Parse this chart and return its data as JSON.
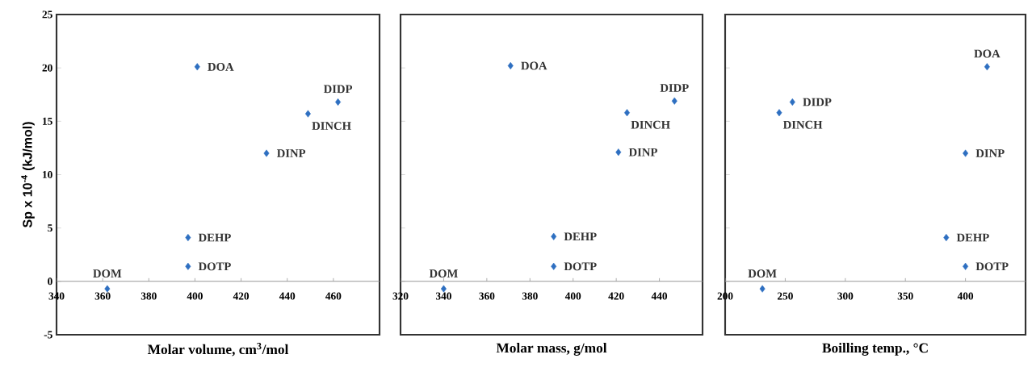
{
  "chart_data": [
    {
      "type": "scatter",
      "x": [
        362,
        397,
        397,
        401,
        431,
        449,
        462
      ],
      "values": [
        -0.7,
        1.4,
        4.1,
        20.1,
        12.0,
        15.7,
        16.8
      ],
      "color": "#2e6fc1",
      "marker": "diamond",
      "xlabel": "Molar volume, cm$^{3}$/mol",
      "ylabel": "Sp  x 10$^{-4}$ (kJ/mol)",
      "xlim": [
        340,
        480
      ],
      "ylim": [
        -5,
        25
      ],
      "xticks": [
        340,
        360,
        380,
        400,
        420,
        440,
        460
      ],
      "yticks": [
        -5,
        0,
        5,
        10,
        15,
        20,
        25
      ],
      "annotations": [
        {
          "text": "DOM",
          "x": 362,
          "y": -0.7
        },
        {
          "text": "DOTP",
          "x": 397,
          "y": 1.4
        },
        {
          "text": "DEHP",
          "x": 397,
          "y": 4.1
        },
        {
          "text": "DOA",
          "x": 401,
          "y": 20.1
        },
        {
          "text": "DINP",
          "x": 431,
          "y": 12.0
        },
        {
          "text": "DINCH",
          "x": 449,
          "y": 15.7
        },
        {
          "text": "DIDP",
          "x": 462,
          "y": 16.8
        }
      ]
    },
    {
      "type": "scatter",
      "x": [
        340,
        391,
        391,
        371,
        421,
        425,
        447
      ],
      "values": [
        -0.7,
        1.4,
        4.2,
        20.2,
        12.1,
        15.8,
        16.9
      ],
      "color": "#2e6fc1",
      "marker": "diamond",
      "xlabel": "Molar mass, g/mol",
      "xlim": [
        320,
        460
      ],
      "ylim": [
        -5,
        25
      ],
      "xticks": [
        320,
        340,
        360,
        380,
        400,
        420,
        440
      ],
      "yticks": [
        -5,
        0,
        5,
        10,
        15,
        20,
        25
      ],
      "tick_labels": "x",
      "annotations": [
        {
          "text": "DOM",
          "x": 340,
          "y": -0.7
        },
        {
          "text": "DOTP",
          "x": 391,
          "y": 1.4
        },
        {
          "text": "DEHP",
          "x": 391,
          "y": 4.2
        },
        {
          "text": "DOA",
          "x": 371,
          "y": 20.2
        },
        {
          "text": "DINP",
          "x": 421,
          "y": 12.1
        },
        {
          "text": "DINCH",
          "x": 425,
          "y": 15.8
        },
        {
          "text": "DIDP",
          "x": 447,
          "y": 16.9
        }
      ]
    },
    {
      "type": "scatter",
      "x": [
        231,
        400,
        384,
        418,
        400,
        245,
        256
      ],
      "values": [
        -0.7,
        1.4,
        4.1,
        20.1,
        12.0,
        15.8,
        16.8
      ],
      "color": "#2e6fc1",
      "marker": "diamond",
      "xlabel": "Boilling temp., °C",
      "xlim": [
        200,
        450
      ],
      "ylim": [
        -5,
        25
      ],
      "xticks": [
        200,
        250,
        300,
        350,
        400
      ],
      "yticks": [
        -5,
        0,
        5,
        10,
        15,
        20,
        25
      ],
      "tick_labels": "x",
      "annotations": [
        {
          "text": "DOM",
          "x": 231,
          "y": -0.7
        },
        {
          "text": "DOTP",
          "x": 400,
          "y": 1.4
        },
        {
          "text": "DEHP",
          "x": 384,
          "y": 4.1
        },
        {
          "text": "DOA",
          "x": 418,
          "y": 20.1
        },
        {
          "text": "DINP",
          "x": 400,
          "y": 12.0
        },
        {
          "text": "DINCH",
          "x": 245,
          "y": 15.8
        },
        {
          "text": "DIDP",
          "x": 256,
          "y": 16.8
        }
      ]
    }
  ]
}
